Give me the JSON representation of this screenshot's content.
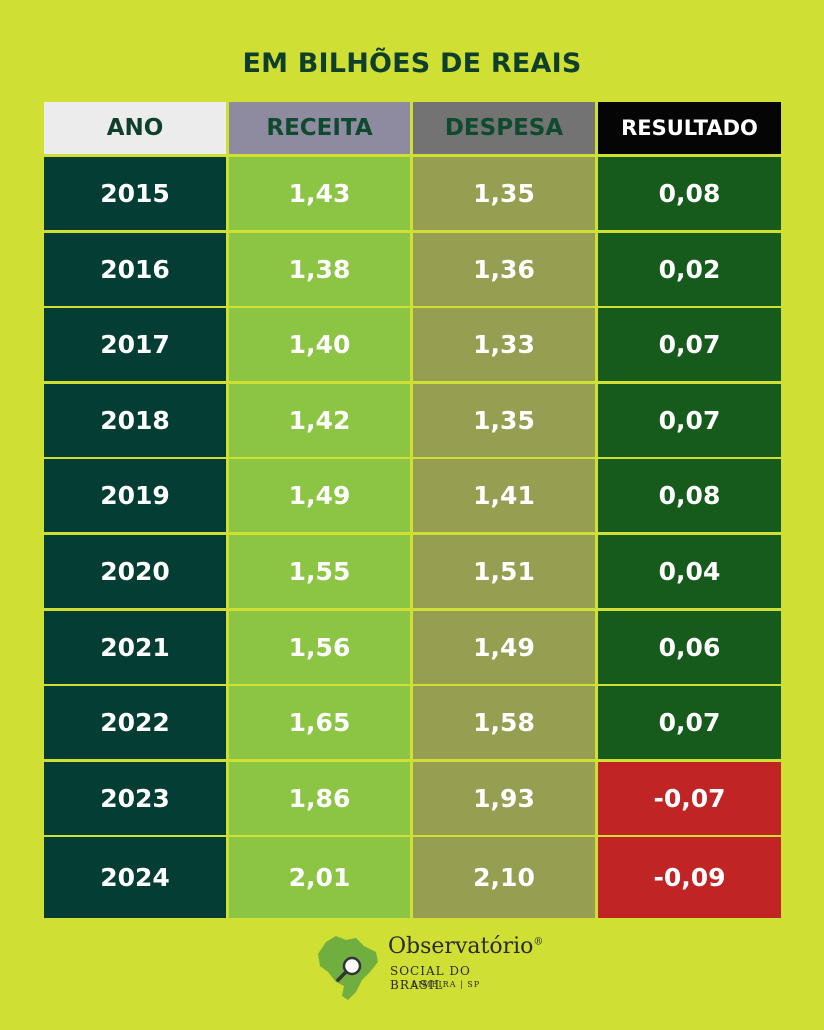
{
  "title": "EM BILHÕES DE REAIS",
  "headers": {
    "ano": "ANO",
    "receita": "RECEITA",
    "despesa": "DESPESA",
    "resultado": "RESULTADO"
  },
  "rows": [
    {
      "ano": "2015",
      "receita": "1,43",
      "despesa": "1,35",
      "resultado": "0,08",
      "negative": false
    },
    {
      "ano": "2016",
      "receita": "1,38",
      "despesa": "1,36",
      "resultado": "0,02",
      "negative": false
    },
    {
      "ano": "2017",
      "receita": "1,40",
      "despesa": "1,33",
      "resultado": "0,07",
      "negative": false
    },
    {
      "ano": "2018",
      "receita": "1,42",
      "despesa": "1,35",
      "resultado": "0,07",
      "negative": false
    },
    {
      "ano": "2019",
      "receita": "1,49",
      "despesa": "1,41",
      "resultado": "0,08",
      "negative": false
    },
    {
      "ano": "2020",
      "receita": "1,55",
      "despesa": "1,51",
      "resultado": "0,04",
      "negative": false
    },
    {
      "ano": "2021",
      "receita": "1,56",
      "despesa": "1,49",
      "resultado": "0,06",
      "negative": false
    },
    {
      "ano": "2022",
      "receita": "1,65",
      "despesa": "1,58",
      "resultado": "0,07",
      "negative": false
    },
    {
      "ano": "2023",
      "receita": "1,86",
      "despesa": "1,93",
      "resultado": "-0,07",
      "negative": true
    },
    {
      "ano": "2024",
      "receita": "2,01",
      "despesa": "2,10",
      "resultado": "-0,09",
      "negative": true
    }
  ],
  "logo": {
    "name": "Observatório",
    "registered": "®",
    "subtitle": "SOCIAL DO BRASIL",
    "location": "LIMEIRA | SP",
    "icon": "brazil-map-magnifier-icon"
  },
  "colors": {
    "background": "#cfdf33",
    "ano_cell": "#033d33",
    "receita_cell": "#8bc543",
    "despesa_cell": "#969e51",
    "resultado_positive": "#165a1c",
    "resultado_negative": "#c12424"
  }
}
